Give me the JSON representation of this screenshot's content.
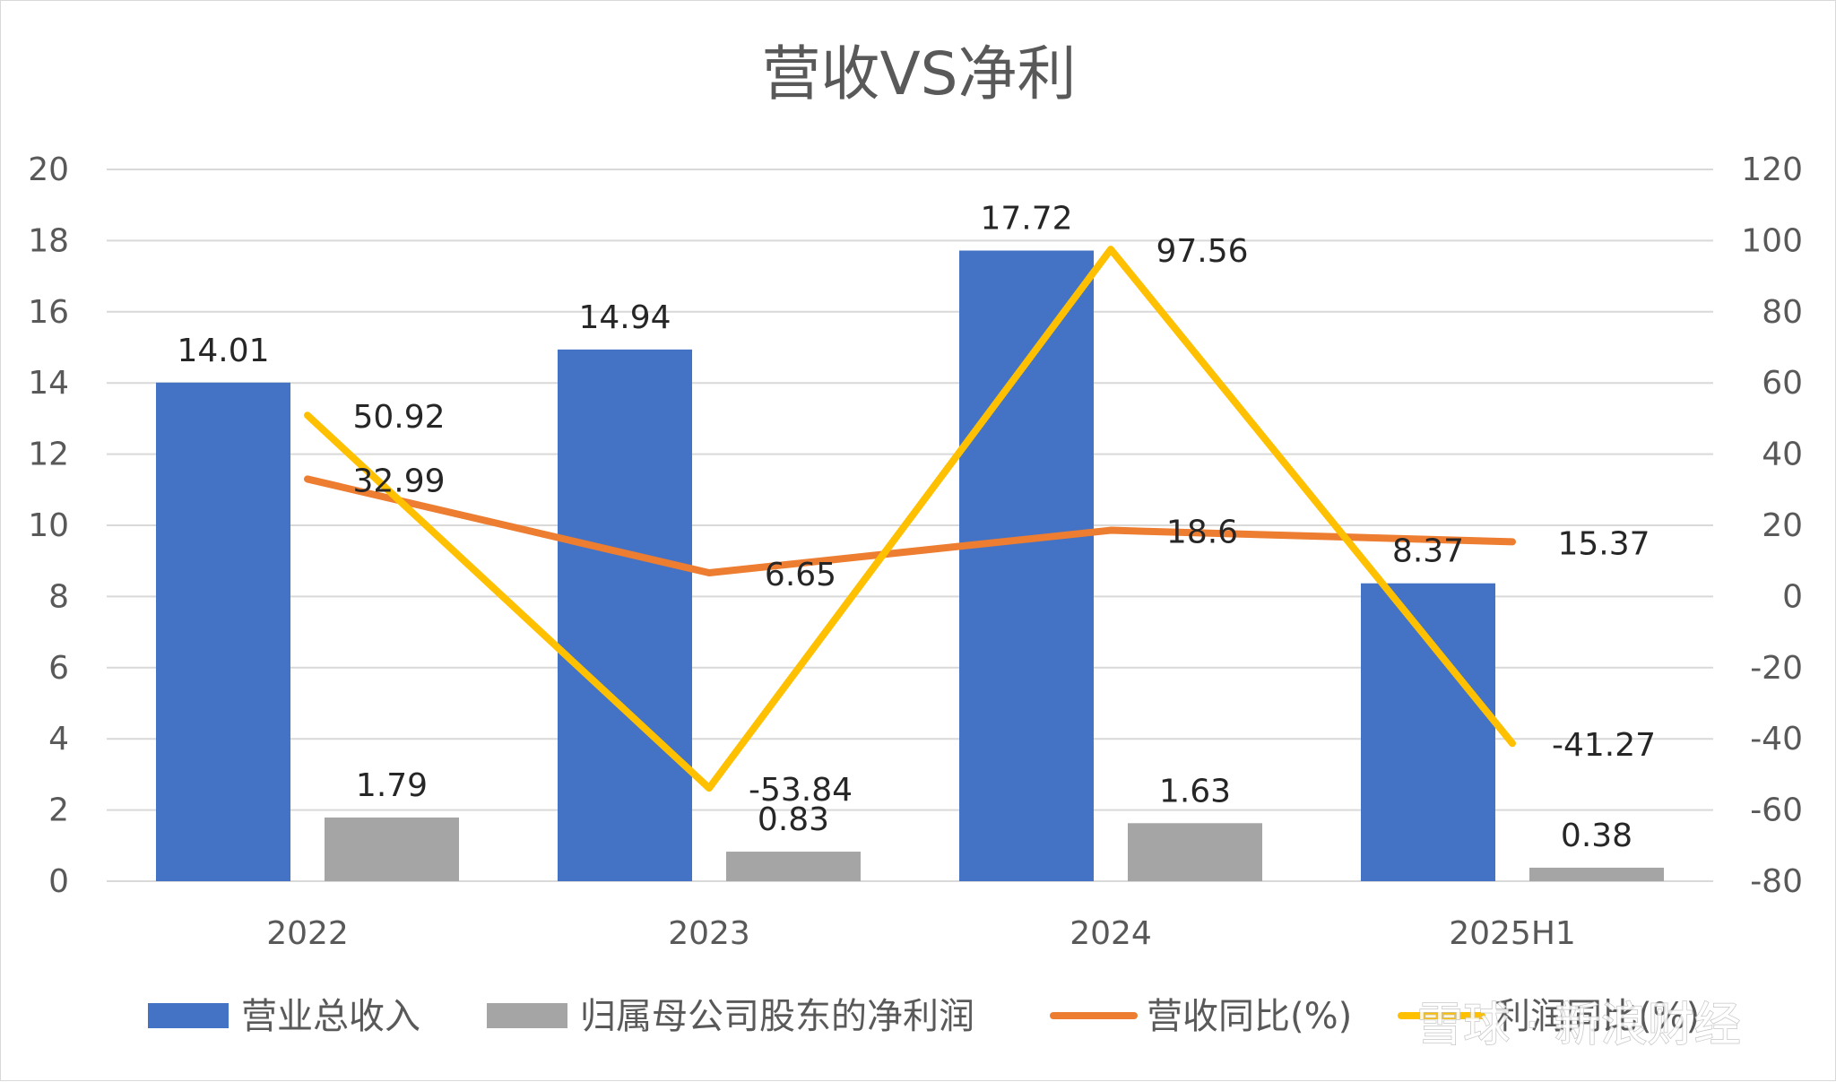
{
  "chart_data": {
    "type": "bar",
    "title": "营收VS净利",
    "categories": [
      "2022",
      "2023",
      "2024",
      "2025H1"
    ],
    "y_left": {
      "ticks": [
        "0",
        "2",
        "4",
        "6",
        "8",
        "10",
        "12",
        "14",
        "16",
        "18",
        "20"
      ],
      "ylim": [
        0,
        20
      ]
    },
    "y_right": {
      "ticks": [
        "-80",
        "-60",
        "-40",
        "-20",
        "0",
        "20",
        "40",
        "60",
        "80",
        "100",
        "120"
      ],
      "ylim": [
        -80,
        120
      ]
    },
    "grid": true,
    "legend_position": "bottom",
    "series": [
      {
        "name": "营业总收入",
        "kind": "bar",
        "axis": "left",
        "color": "#4472c4",
        "values": [
          14.01,
          14.94,
          17.72,
          8.37
        ],
        "labels": [
          "14.01",
          "14.94",
          "17.72",
          "8.37"
        ]
      },
      {
        "name": "归属母公司股东的净利润",
        "kind": "bar",
        "axis": "left",
        "color": "#a5a5a5",
        "values": [
          1.79,
          0.83,
          1.63,
          0.38
        ],
        "labels": [
          "1.79",
          "0.83",
          "1.63",
          "0.38"
        ]
      },
      {
        "name": "营收同比(%)",
        "kind": "line",
        "axis": "right",
        "color": "#ed7d31",
        "values": [
          32.99,
          6.65,
          18.6,
          15.37
        ],
        "labels": [
          "32.99",
          "6.65",
          "18.6",
          "15.37"
        ]
      },
      {
        "name": "利润同比(%)",
        "kind": "line",
        "axis": "right",
        "color": "#ffc000",
        "values": [
          50.92,
          -53.84,
          97.56,
          -41.27
        ],
        "labels": [
          "50.92",
          "-53.84",
          "97.56",
          "-41.27"
        ]
      }
    ]
  },
  "watermark": {
    "text": "雪球 · 新浪财经"
  }
}
